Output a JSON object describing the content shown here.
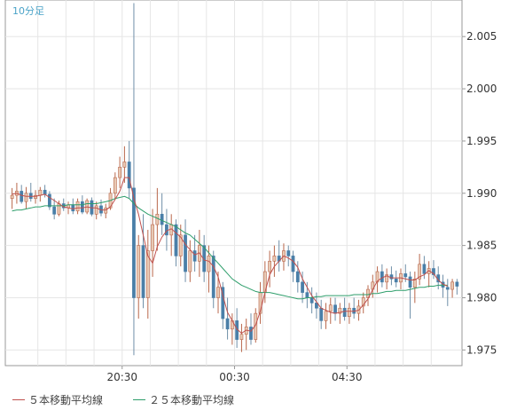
{
  "timeframe_label": "10分足",
  "legend": {
    "ma5": {
      "label": "５本移動平均線",
      "color": "#c0504d"
    },
    "ma25": {
      "label": "２５本移動平均線",
      "color": "#2e9e6b"
    }
  },
  "colors": {
    "up_body": "#e8c9b4",
    "up_outline": "#b9674b",
    "down_body": "#4a7fa8",
    "wick": "#6f8fa8",
    "grid": "#e6e6e6",
    "axis": "#999999"
  },
  "chart_data": {
    "type": "candlestick",
    "title": "",
    "ylim": [
      1.9735,
      2.0085
    ],
    "y_ticks": [
      "1.975",
      "1.980",
      "1.985",
      "1.990",
      "1.995",
      "2.000",
      "2.005"
    ],
    "x_ticks": [
      "20:30",
      "00:30",
      "04:30"
    ],
    "grid": true,
    "candles": [
      [
        1.9895,
        1.9905,
        1.9885,
        1.9898
      ],
      [
        1.9898,
        1.991,
        1.989,
        1.9902
      ],
      [
        1.9902,
        1.9908,
        1.989,
        1.9892
      ],
      [
        1.9892,
        1.9906,
        1.9885,
        1.99
      ],
      [
        1.99,
        1.991,
        1.9892,
        1.9895
      ],
      [
        1.9895,
        1.9903,
        1.989,
        1.9898
      ],
      [
        1.9898,
        1.9906,
        1.9892,
        1.9903
      ],
      [
        1.9903,
        1.9908,
        1.9896,
        1.9899
      ],
      [
        1.9899,
        1.9902,
        1.9884,
        1.9887
      ],
      [
        1.9887,
        1.9895,
        1.9875,
        1.988
      ],
      [
        1.988,
        1.9893,
        1.9878,
        1.989
      ],
      [
        1.989,
        1.9895,
        1.9883,
        1.9886
      ],
      [
        1.9886,
        1.9892,
        1.988,
        1.9889
      ],
      [
        1.9889,
        1.9895,
        1.988,
        1.9883
      ],
      [
        1.9883,
        1.9895,
        1.988,
        1.9892
      ],
      [
        1.9892,
        1.9898,
        1.988,
        1.9882
      ],
      [
        1.9882,
        1.9895,
        1.988,
        1.9893
      ],
      [
        1.9893,
        1.9896,
        1.9878,
        1.988
      ],
      [
        1.988,
        1.9892,
        1.9875,
        1.9888
      ],
      [
        1.9888,
        1.9894,
        1.9878,
        1.9881
      ],
      [
        1.9881,
        1.989,
        1.9876,
        1.9886
      ],
      [
        1.9886,
        1.9905,
        1.9884,
        1.99
      ],
      [
        1.99,
        1.992,
        1.9895,
        1.9915
      ],
      [
        1.9915,
        1.9935,
        1.9905,
        1.9925
      ],
      [
        1.9925,
        1.9945,
        1.991,
        1.993
      ],
      [
        1.993,
        1.995,
        1.9895,
        1.9905
      ],
      [
        1.9905,
        2.0082,
        1.9745,
        1.98
      ],
      [
        1.98,
        1.986,
        1.978,
        1.985
      ],
      [
        1.985,
        1.988,
        1.979,
        1.98
      ],
      [
        1.98,
        1.9865,
        1.978,
        1.9845
      ],
      [
        1.9845,
        1.9885,
        1.982,
        1.987
      ],
      [
        1.987,
        1.9905,
        1.9845,
        1.988
      ],
      [
        1.988,
        1.99,
        1.986,
        1.987
      ],
      [
        1.987,
        1.9885,
        1.9845,
        1.986
      ],
      [
        1.986,
        1.988,
        1.984,
        1.987
      ],
      [
        1.987,
        1.9875,
        1.983,
        1.984
      ],
      [
        1.984,
        1.987,
        1.983,
        1.986
      ],
      [
        1.986,
        1.9875,
        1.9815,
        1.9825
      ],
      [
        1.9825,
        1.9855,
        1.9815,
        1.9845
      ],
      [
        1.9845,
        1.986,
        1.9825,
        1.9835
      ],
      [
        1.9835,
        1.9865,
        1.982,
        1.985
      ],
      [
        1.985,
        1.986,
        1.9815,
        1.9825
      ],
      [
        1.9825,
        1.985,
        1.9805,
        1.984
      ],
      [
        1.984,
        1.9845,
        1.979,
        1.98
      ],
      [
        1.98,
        1.9825,
        1.9785,
        1.981
      ],
      [
        1.981,
        1.9815,
        1.977,
        1.978
      ],
      [
        1.978,
        1.98,
        1.976,
        1.977
      ],
      [
        1.977,
        1.9785,
        1.9755,
        1.9778
      ],
      [
        1.9778,
        1.979,
        1.9752,
        1.976
      ],
      [
        1.976,
        1.9775,
        1.9748,
        1.9765
      ],
      [
        1.9765,
        1.978,
        1.975,
        1.9772
      ],
      [
        1.9772,
        1.9785,
        1.9755,
        1.976
      ],
      [
        1.976,
        1.979,
        1.9757,
        1.9785
      ],
      [
        1.9785,
        1.9815,
        1.9775,
        1.9805
      ],
      [
        1.9805,
        1.9835,
        1.9795,
        1.9825
      ],
      [
        1.9825,
        1.9845,
        1.981,
        1.9835
      ],
      [
        1.9835,
        1.985,
        1.982,
        1.984
      ],
      [
        1.984,
        1.9855,
        1.9825,
        1.9835
      ],
      [
        1.9835,
        1.9852,
        1.9826,
        1.9845
      ],
      [
        1.9845,
        1.985,
        1.983,
        1.984
      ],
      [
        1.984,
        1.9845,
        1.9815,
        1.9825
      ],
      [
        1.9825,
        1.9835,
        1.9805,
        1.9815
      ],
      [
        1.9815,
        1.9825,
        1.9795,
        1.9805
      ],
      [
        1.9805,
        1.9815,
        1.979,
        1.98
      ],
      [
        1.98,
        1.981,
        1.9785,
        1.9795
      ],
      [
        1.9795,
        1.9805,
        1.978,
        1.979
      ],
      [
        1.979,
        1.9798,
        1.977,
        1.9778
      ],
      [
        1.9778,
        1.9795,
        1.977,
        1.9787
      ],
      [
        1.9787,
        1.98,
        1.9775,
        1.9793
      ],
      [
        1.9793,
        1.98,
        1.9778,
        1.9785
      ],
      [
        1.9785,
        1.9795,
        1.9775,
        1.979
      ],
      [
        1.979,
        1.98,
        1.9778,
        1.9782
      ],
      [
        1.9782,
        1.9795,
        1.9775,
        1.979
      ],
      [
        1.979,
        1.98,
        1.978,
        1.9785
      ],
      [
        1.9785,
        1.9798,
        1.9778,
        1.9792
      ],
      [
        1.9792,
        1.9805,
        1.9785,
        1.98
      ],
      [
        1.98,
        1.9812,
        1.9792,
        1.9808
      ],
      [
        1.9808,
        1.9822,
        1.98,
        1.9815
      ],
      [
        1.9815,
        1.983,
        1.9805,
        1.9825
      ],
      [
        1.9825,
        1.9832,
        1.981,
        1.9815
      ],
      [
        1.9815,
        1.9828,
        1.9808,
        1.9822
      ],
      [
        1.9822,
        1.983,
        1.9812,
        1.9818
      ],
      [
        1.9818,
        1.9826,
        1.981,
        1.9815
      ],
      [
        1.9815,
        1.9828,
        1.9808,
        1.9823
      ],
      [
        1.9823,
        1.9832,
        1.9815,
        1.982
      ],
      [
        1.982,
        1.9825,
        1.978,
        1.981
      ],
      [
        1.981,
        1.9825,
        1.9795,
        1.9818
      ],
      [
        1.9818,
        1.9842,
        1.9812,
        1.9832
      ],
      [
        1.9832,
        1.984,
        1.9818,
        1.9823
      ],
      [
        1.9823,
        1.9835,
        1.981,
        1.9828
      ],
      [
        1.9828,
        1.9836,
        1.9818,
        1.9822
      ],
      [
        1.9822,
        1.983,
        1.9808,
        1.9815
      ],
      [
        1.9815,
        1.9822,
        1.98,
        1.981
      ],
      [
        1.981,
        1.9818,
        1.9792,
        1.9808
      ],
      [
        1.9808,
        1.9818,
        1.98,
        1.9815
      ],
      [
        1.9815,
        1.9818,
        1.9803,
        1.9811
      ]
    ],
    "ma5_label": "５本移動平均線",
    "ma25_label": "２５本移動平均線",
    "ma5": [
      1.9899,
      1.99,
      1.9898,
      1.9897,
      1.9897,
      1.9897,
      1.9898,
      1.9899,
      1.9896,
      1.9893,
      1.989,
      1.9887,
      1.9886,
      1.9885,
      1.9886,
      1.9886,
      1.9887,
      1.9886,
      1.9886,
      1.9884,
      1.9884,
      1.9887,
      1.9894,
      1.9902,
      1.9915,
      1.9915,
      1.9895,
      1.988,
      1.986,
      1.984,
      1.9833,
      1.9849,
      1.9858,
      1.9864,
      1.9866,
      1.9862,
      1.9858,
      1.9851,
      1.9846,
      1.9841,
      1.9843,
      1.9836,
      1.9835,
      1.983,
      1.982,
      1.9802,
      1.9786,
      1.9778,
      1.977,
      1.9766,
      1.9769,
      1.9768,
      1.9774,
      1.9787,
      1.9805,
      1.9822,
      1.983,
      1.9835,
      1.984,
      1.9838,
      1.9835,
      1.9829,
      1.9818,
      1.981,
      1.9802,
      1.9796,
      1.979,
      1.9788,
      1.9786,
      1.9785,
      1.9786,
      1.9787,
      1.9787,
      1.9787,
      1.9788,
      1.9793,
      1.9799,
      1.9808,
      1.9816,
      1.9819,
      1.9821,
      1.9819,
      1.9819,
      1.9819,
      1.9818,
      1.9817,
      1.9817,
      1.982,
      1.9822,
      1.9826,
      1.9823,
      1.9817,
      1.9813,
      1.9811
    ],
    "ma25": [
      1.9883,
      1.9884,
      1.9884,
      1.9885,
      1.9886,
      1.9887,
      1.9887,
      1.9888,
      1.9888,
      1.9888,
      1.9888,
      1.9888,
      1.9889,
      1.9889,
      1.9889,
      1.9889,
      1.989,
      1.989,
      1.989,
      1.9891,
      1.9892,
      1.9893,
      1.9895,
      1.9896,
      1.9897,
      1.9895,
      1.989,
      1.9886,
      1.9883,
      1.988,
      1.9878,
      1.9876,
      1.9874,
      1.9872,
      1.987,
      1.9868,
      1.9865,
      1.9862,
      1.986,
      1.9856,
      1.9852,
      1.9848,
      1.9843,
      1.9838,
      1.9833,
      1.9828,
      1.9823,
      1.9818,
      1.9815,
      1.9812,
      1.981,
      1.9808,
      1.9806,
      1.9805,
      1.9805,
      1.9805,
      1.9804,
      1.9803,
      1.9802,
      1.9801,
      1.98,
      1.9799,
      1.9799,
      1.98,
      1.98,
      1.9801,
      1.9801,
      1.9802,
      1.9802,
      1.9802,
      1.9802,
      1.9802,
      1.9802,
      1.9803,
      1.9803,
      1.9803,
      1.9803,
      1.9804,
      1.9804,
      1.9805,
      1.9806,
      1.9806,
      1.9807,
      1.9807,
      1.9807,
      1.9808,
      1.9809,
      1.981,
      1.981,
      1.9811,
      1.9811,
      1.9812,
      1.9812,
      1.9812
    ]
  }
}
